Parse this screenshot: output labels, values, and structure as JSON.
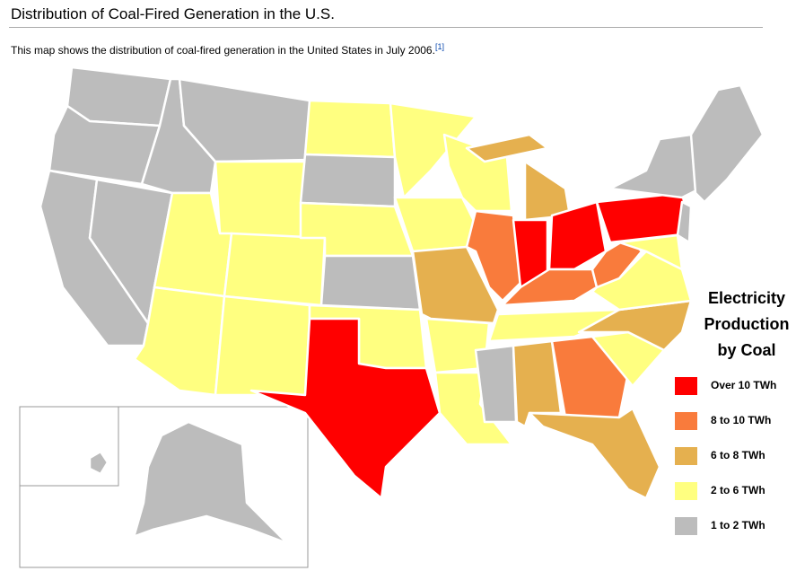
{
  "header": {
    "title": "Distribution of Coal-Fired Generation in the U.S.",
    "description": "This map shows the distribution of coal-fired generation in the United States in July 2006.",
    "footnote": "[1]"
  },
  "legend": {
    "title_lines": [
      "Electricity",
      "Production",
      "by Coal"
    ],
    "items": [
      {
        "label": "Over 10 TWh",
        "color": "#ff0000"
      },
      {
        "label": "8 to 10 TWh",
        "color": "#f97b3c"
      },
      {
        "label": "6 to 8 TWh",
        "color": "#e5b04f"
      },
      {
        "label": "2 to 6 TWh",
        "color": "#ffff80"
      },
      {
        "label": "1 to 2 TWh",
        "color": "#bcbcbc"
      }
    ]
  },
  "map": {
    "classes": [
      4,
      4,
      4,
      4,
      4,
      4,
      3,
      3,
      3,
      3,
      3,
      3,
      4,
      3,
      4,
      3,
      0,
      3,
      3,
      2,
      3,
      3,
      3,
      1,
      2,
      2,
      0,
      0,
      1,
      3,
      4,
      2,
      1,
      2,
      3,
      2,
      3,
      1,
      0,
      4,
      4,
      3,
      4,
      4,
      4
    ]
  }
}
